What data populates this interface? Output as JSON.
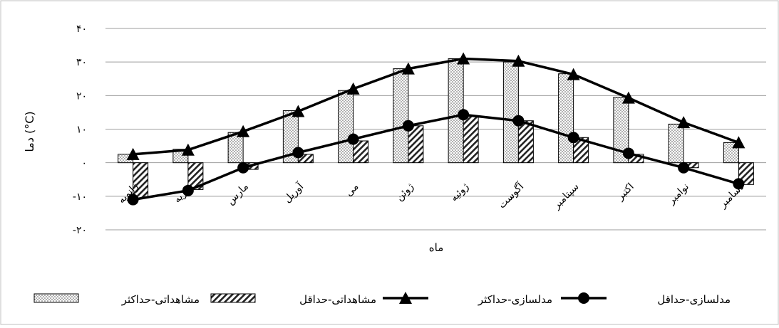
{
  "chart_data": {
    "type": "bar",
    "categories": [
      "ژانویه",
      "فوریه",
      "مارس",
      "آوریل",
      "می",
      "ژوئن",
      "ژوئیه",
      "آگوست",
      "سپتامبر",
      "اکتبر",
      "نوامبر",
      "دسامبر"
    ],
    "series": [
      {
        "name": "مشاهداتی-حداکثر",
        "kind": "bar",
        "pattern": "dots",
        "values": [
          2.5,
          4,
          9,
          15.5,
          21.5,
          28,
          31,
          30,
          26.5,
          19.5,
          11.5,
          6
        ]
      },
      {
        "name": "مشاهداتی-حداقل",
        "kind": "bar",
        "pattern": "hatch",
        "values": [
          -10.5,
          -8,
          -2,
          2.5,
          6.5,
          11,
          14,
          12.5,
          7.5,
          2.5,
          -1.5,
          -6.5
        ]
      },
      {
        "name": "مدلسازی-حداکثر",
        "kind": "line",
        "marker": "triangle",
        "values": [
          2.5,
          3.8,
          9.3,
          15.3,
          22,
          28,
          31,
          30.3,
          26.3,
          19.3,
          12,
          6
        ]
      },
      {
        "name": "مدلسازی-حداقل",
        "kind": "line",
        "marker": "circle",
        "values": [
          -11,
          -8.3,
          -1.5,
          3,
          7,
          11,
          14.3,
          12.5,
          7.5,
          2.8,
          -1.5,
          -6.3
        ]
      }
    ],
    "xlabel": "ماه",
    "ylabel": "دما (°C)",
    "ylim": [
      -20,
      40
    ],
    "yticks": [
      40,
      30,
      20,
      10,
      0,
      -10,
      -20
    ],
    "ytick_labels": [
      "۴۰",
      "۳۰",
      "۲۰",
      "۱۰",
      "۰",
      "-۱۰",
      "-۲۰"
    ],
    "grid": true,
    "legend_position": "bottom"
  },
  "legend": {
    "items": [
      {
        "label": "مشاهداتی-حداکثر",
        "symbol": "dots-box"
      },
      {
        "label": "مشاهداتی-حداقل",
        "symbol": "hatch-box"
      },
      {
        "label": "مدلسازی-حداکثر",
        "symbol": "triangle-line"
      },
      {
        "label": "مدلسازی-حداقل",
        "symbol": "circle-line"
      }
    ]
  }
}
